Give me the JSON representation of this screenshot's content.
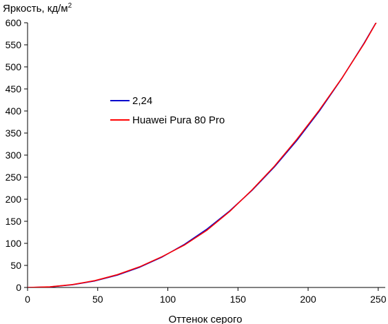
{
  "chart_data": {
    "type": "line",
    "title": "",
    "ylabel": "Яркость, кд/м",
    "ylabel_sup": "2",
    "xlabel": "Оттенок серого",
    "xlim": [
      0,
      255
    ],
    "ylim": [
      0,
      600
    ],
    "x_ticks": [
      0,
      50,
      100,
      150,
      200,
      250
    ],
    "y_ticks": [
      0,
      50,
      100,
      150,
      200,
      250,
      300,
      350,
      400,
      450,
      500,
      550,
      600
    ],
    "grid": false,
    "legend_position": "center-left",
    "series": [
      {
        "name": "2,24",
        "color": "#0000cc",
        "x": [
          0,
          16,
          32,
          48,
          64,
          80,
          96,
          112,
          128,
          144,
          160,
          176,
          192,
          208,
          224,
          240,
          255
        ],
        "y": [
          0,
          1.3,
          6.1,
          14.8,
          28.0,
          46.0,
          69.2,
          98.0,
          132.6,
          173.2,
          220.0,
          273.3,
          333.2,
          399.8,
          473.5,
          554.3,
          636.0
        ]
      },
      {
        "name": "Huawei Pura 80 Pro",
        "color": "#ff0000",
        "x": [
          0,
          16,
          32,
          48,
          64,
          80,
          96,
          112,
          128,
          144,
          160,
          176,
          192,
          208,
          224,
          240,
          255
        ],
        "y": [
          0,
          1.5,
          6.5,
          15.5,
          29.0,
          47.0,
          70.0,
          96.5,
          130.0,
          172.0,
          221.0,
          275.0,
          336.0,
          402.0,
          474.0,
          553.0,
          636.0
        ]
      }
    ]
  }
}
